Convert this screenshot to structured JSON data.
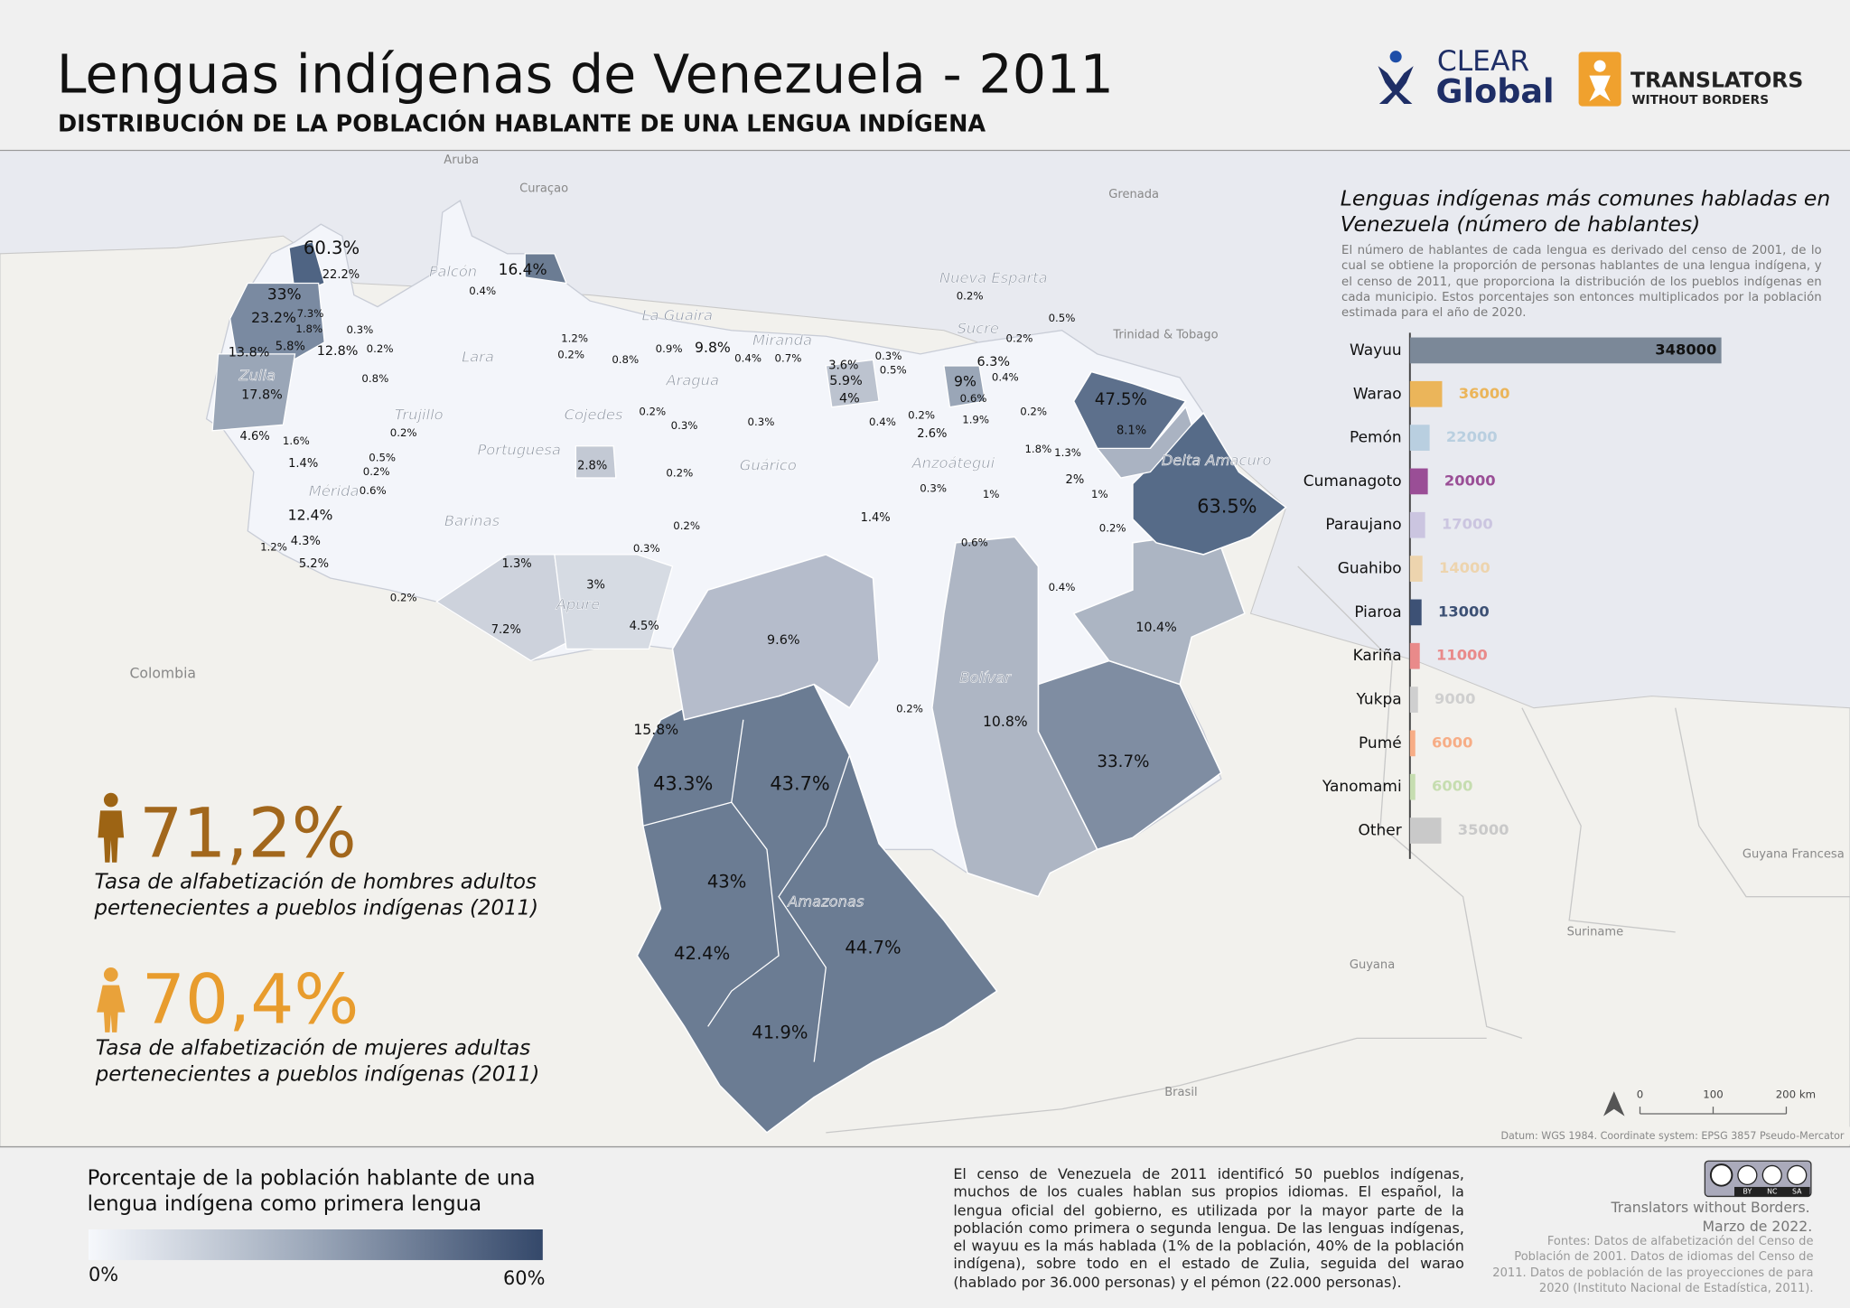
{
  "header": {
    "title": "Lenguas indígenas de Venezuela - 2011",
    "subtitle": "DISTRIBUCIÓN DE LA POBLACIÓN HABLANTE DE UNA LENGUA INDÍGENA"
  },
  "logos": {
    "clear": "CLEAR",
    "global": "Global",
    "translators": "TRANSLATORS",
    "without_borders": "WITHOUT BORDERS"
  },
  "map": {
    "labels": [
      "60.3%",
      "22.2%",
      "33%",
      "23.2%",
      "7.3%",
      "1.8%",
      "13.8%",
      "5.8%",
      "12.8%",
      "0.3%",
      "0.2%",
      "17.8%",
      "0.8%",
      "16.4%",
      "0.4%",
      "1.2%",
      "0.2%",
      "0.8%",
      "0.9%",
      "9.8%",
      "0.4%",
      "0.7%",
      "3.6%",
      "5.9%",
      "4%",
      "0.3%",
      "0.5%",
      "0.2%",
      "0.5%",
      "0.2%",
      "6.3%",
      "0.4%",
      "9%",
      "0.6%",
      "1.9%",
      "0.2%",
      "2.6%",
      "0.4%",
      "0.2%",
      "47.5%",
      "8.1%",
      "1.8%",
      "1.3%",
      "2%",
      "1%",
      "0.3%",
      "1%",
      "0.2%",
      "63.5%",
      "0.2%",
      "4.6%",
      "1.6%",
      "1.4%",
      "0.5%",
      "0.2%",
      "0.6%",
      "12.4%",
      "1.2%",
      "4.3%",
      "5.2%",
      "0.2%",
      "0.3%",
      "0.3%",
      "2.8%",
      "0.2%",
      "0.2%",
      "0.3%",
      "1.4%",
      "0.6%",
      "0.4%",
      "1.3%",
      "3%",
      "4.5%",
      "7.2%",
      "0.2%",
      "9.6%",
      "10.4%",
      "15.8%",
      "0.2%",
      "10.8%",
      "33.7%",
      "43.3%",
      "43.7%",
      "43%",
      "42.4%",
      "44.7%",
      "41.9%"
    ],
    "regions": [
      "Falcón",
      "La Guaira",
      "Lara",
      "Miranda",
      "Aragua",
      "Trujillo",
      "Cojedes",
      "Zulia",
      "Portuguesa",
      "Guárico",
      "Mérida",
      "Barinas",
      "Apure",
      "Nueva Esparta",
      "Sucre",
      "Anzoátegui",
      "Delta Amacuro",
      "Bolívar",
      "Amazonas"
    ],
    "countries": [
      "Aruba",
      "Curaçao",
      "Grenada",
      "Trinidad & Tobago",
      "Colombia",
      "Guyana",
      "Suriname",
      "Guyana Francesa",
      "Brasil"
    ],
    "scale": [
      "0",
      "100",
      "200 km"
    ],
    "datum": "Datum: WGS 1984. Coordinate system: EPSG 3857 Pseudo-Mercator"
  },
  "chart_data": {
    "type": "bar",
    "orientation": "horizontal",
    "title": "Lenguas indígenas más comunes habladas en Venezuela (número de hablantes)",
    "description": "El número de hablantes de cada lengua es derivado del censo de 2001, de lo cual se obtiene la proporción de personas hablantes de una lengua indígena, y el censo de 2011, que proporciona la distribución de los pueblos indígenas en cada municipio. Estos porcentajes son entonces multiplicados por la población estimada para el año de 2020.",
    "categories": [
      "Wayuu",
      "Warao",
      "Pemón",
      "Cumanagoto",
      "Paraujano",
      "Guahibo",
      "Piaroa",
      "Kariña",
      "Yukpa",
      "Pumé",
      "Yanomami",
      "Other"
    ],
    "values": [
      348000,
      36000,
      22000,
      20000,
      17000,
      14000,
      13000,
      11000,
      9000,
      6000,
      6000,
      35000
    ],
    "colors": [
      "#7b8898",
      "#ebb55a",
      "#b9cfe0",
      "#9a4e96",
      "#cbc5e0",
      "#edd4ae",
      "#3d5175",
      "#e98a8a",
      "#cfcfcf",
      "#f7ad86",
      "#c6ddb0",
      "#c9c9c9"
    ],
    "xlim": [
      0,
      350000
    ]
  },
  "stats": [
    {
      "value": "71,2%",
      "caption": "Tasa de alfabetización de hombres adultos pertenecientes a pueblos indígenas (2011)"
    },
    {
      "value": "70,4%",
      "caption": "Tasa de alfabetización de mujeres adultas pertenecientes a pueblos indígenas (2011)"
    }
  ],
  "legend": {
    "title": "Porcentaje de la población hablante de una lengua indígena como primera lengua",
    "min": "0%",
    "max": "60%"
  },
  "footer": {
    "text": "El censo de Venezuela de 2011 identificó 50 pueblos indígenas, muchos de los cuales hablan sus propios idiomas. El español, la lengua oficial del gobierno, es utilizada por la mayor parte de la población como primera o segunda lengua. De las lenguas indígenas, el wayuu es la más hablada (1% de la población, 40% de la población indígena), sobre todo en el estado de Zulia, seguida del warao (hablado por 36.000 personas) y el pémon (22.000 personas).",
    "credit": [
      "Translators without Borders.",
      "Marzo de 2022."
    ],
    "sources": "Fontes: Datos de alfabetización del Censo de Población de 2001. Datos de idiomas del Censo de 2011. Datos de población de las proyecciones de para 2020 (Instituto Nacional de Estadística, 2011)."
  },
  "license": {
    "labels": [
      "BY",
      "NC",
      "SA"
    ]
  }
}
